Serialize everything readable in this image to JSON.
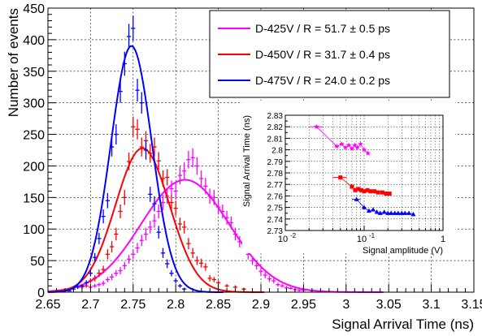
{
  "chart_data": [
    {
      "type": "scatter",
      "role": "main",
      "title": "",
      "xlabel": "Signal Arrival Time (ns)",
      "ylabel": "Number of events",
      "xlim": [
        2.65,
        3.15
      ],
      "ylim": [
        0,
        450
      ],
      "x_ticks": [
        "2.65",
        "2.7",
        "2.75",
        "2.8",
        "2.85",
        "2.9",
        "2.95",
        "3",
        "3.05",
        "3.1",
        "3.15"
      ],
      "y_ticks": [
        "0",
        "50",
        "100",
        "150",
        "200",
        "250",
        "300",
        "350",
        "400",
        "450"
      ],
      "grid": true,
      "legend_position": "top-right",
      "legend": [
        {
          "label": "D-425V / R = 51.7 ± 0.5 ps",
          "color": "#ff00ff"
        },
        {
          "label": "D-450V / R = 31.7 ± 0.4 ps",
          "color": "#ff0000"
        },
        {
          "label": "D-475V / R = 24.0 ± 0.2 ps",
          "color": "#0000ff"
        }
      ],
      "series": [
        {
          "name": "D-425V / R = 51.7 ± 0.5 ps",
          "color": "#ff00ff",
          "fit": {
            "mean": 2.811,
            "sigma": 0.0517,
            "amplitude": 178
          },
          "x": [
            2.7,
            2.705,
            2.71,
            2.715,
            2.72,
            2.725,
            2.73,
            2.735,
            2.74,
            2.745,
            2.75,
            2.755,
            2.76,
            2.765,
            2.77,
            2.775,
            2.78,
            2.785,
            2.79,
            2.795,
            2.8,
            2.805,
            2.81,
            2.815,
            2.82,
            2.825,
            2.83,
            2.835,
            2.84,
            2.845,
            2.85,
            2.855,
            2.86,
            2.865,
            2.87,
            2.875,
            2.88,
            2.885,
            2.89,
            2.895,
            2.9,
            2.905,
            2.91,
            2.915,
            2.92,
            2.925,
            2.93,
            2.935,
            2.94,
            2.945,
            2.95,
            2.96,
            2.97,
            2.98
          ],
          "y": [
            8,
            10,
            12,
            14,
            20,
            24,
            30,
            34,
            42,
            52,
            60,
            70,
            82,
            92,
            103,
            113,
            128,
            142,
            152,
            164,
            160,
            185,
            192,
            210,
            213,
            200,
            180,
            168,
            152,
            150,
            135,
            128,
            118,
            110,
            92,
            80,
            72,
            60,
            50,
            42,
            33,
            27,
            21,
            18,
            12,
            10,
            7,
            6,
            4,
            3,
            3,
            2,
            2,
            1
          ],
          "yerr": [
            3,
            3,
            3,
            4,
            4,
            5,
            5,
            6,
            6,
            7,
            8,
            8,
            9,
            10,
            10,
            11,
            11,
            12,
            12,
            13,
            13,
            14,
            14,
            14,
            15,
            14,
            13,
            13,
            12,
            12,
            12,
            11,
            11,
            10,
            10,
            9,
            8,
            8,
            7,
            6,
            6,
            5,
            5,
            4,
            3,
            3,
            3,
            2,
            2,
            2,
            2,
            1,
            1,
            1
          ]
        },
        {
          "name": "D-450V / R = 31.7 ± 0.4 ps",
          "color": "#ff0000",
          "fit": {
            "mean": 2.761,
            "sigma": 0.0317,
            "amplitude": 228
          },
          "x": [
            2.69,
            2.695,
            2.7,
            2.705,
            2.71,
            2.715,
            2.72,
            2.725,
            2.73,
            2.735,
            2.74,
            2.745,
            2.75,
            2.755,
            2.76,
            2.765,
            2.77,
            2.775,
            2.78,
            2.785,
            2.79,
            2.795,
            2.8,
            2.805,
            2.81,
            2.815,
            2.82,
            2.825,
            2.83,
            2.835,
            2.84,
            2.845,
            2.85,
            2.86,
            2.87,
            2.88
          ],
          "y": [
            8,
            10,
            18,
            22,
            30,
            36,
            60,
            72,
            92,
            128,
            150,
            207,
            262,
            258,
            230,
            240,
            220,
            230,
            208,
            180,
            182,
            142,
            133,
            108,
            103,
            77,
            62,
            50,
            46,
            40,
            22,
            20,
            15,
            10,
            8,
            5
          ],
          "yerr": [
            3,
            3,
            4,
            5,
            6,
            6,
            8,
            9,
            10,
            11,
            12,
            14,
            16,
            16,
            15,
            15,
            15,
            15,
            14,
            13,
            13,
            12,
            12,
            10,
            10,
            9,
            8,
            7,
            7,
            6,
            5,
            4,
            4,
            3,
            3,
            2
          ]
        },
        {
          "name": "D-475V / R = 24.0 ± 0.2 ps",
          "color": "#0000ff",
          "fit": {
            "mean": 2.748,
            "sigma": 0.024,
            "amplitude": 390
          },
          "x": [
            2.675,
            2.68,
            2.685,
            2.69,
            2.695,
            2.7,
            2.705,
            2.71,
            2.715,
            2.72,
            2.725,
            2.73,
            2.735,
            2.74,
            2.745,
            2.75,
            2.755,
            2.76,
            2.765,
            2.77,
            2.775,
            2.78,
            2.785,
            2.79,
            2.795,
            2.8,
            2.805,
            2.81
          ],
          "y": [
            2,
            5,
            8,
            10,
            15,
            30,
            55,
            85,
            120,
            145,
            230,
            250,
            318,
            362,
            405,
            418,
            320,
            300,
            225,
            155,
            140,
            95,
            62,
            45,
            30,
            18,
            10,
            5
          ],
          "yerr": [
            1,
            2,
            3,
            3,
            4,
            5,
            7,
            9,
            11,
            12,
            15,
            16,
            18,
            19,
            20,
            20,
            18,
            17,
            15,
            12,
            12,
            10,
            8,
            7,
            5,
            4,
            3,
            2
          ]
        }
      ]
    },
    {
      "type": "scatter",
      "role": "inset",
      "title": "",
      "xlabel": "Signal amplitude (V)",
      "ylabel": "Signal Arrival Time (ns)",
      "xscale": "log",
      "xlim": [
        0.01,
        1
      ],
      "ylim": [
        2.73,
        2.83
      ],
      "x_ticks": [
        "10",
        "10",
        "1"
      ],
      "x_tick_exponents": [
        "-2",
        "-1",
        ""
      ],
      "y_ticks": [
        "2.73",
        "2.74",
        "2.75",
        "2.76",
        "2.77",
        "2.78",
        "2.79",
        "2.8",
        "2.81",
        "2.82",
        "2.83"
      ],
      "grid": true,
      "series": [
        {
          "color": "#ff00ff",
          "marker": "star",
          "x": [
            0.025,
            0.045,
            0.052,
            0.058,
            0.064,
            0.07,
            0.076,
            0.082,
            0.09,
            0.1,
            0.112
          ],
          "y": [
            2.82,
            2.803,
            2.805,
            2.802,
            2.804,
            2.801,
            2.804,
            2.802,
            2.805,
            2.8,
            2.797
          ],
          "xerr": [
            0.005,
            0.003,
            0.003,
            0.003,
            0.003,
            0.003,
            0.003,
            0.003,
            0.004,
            0.004,
            0.004
          ]
        },
        {
          "color": "#ff0000",
          "marker": "square",
          "x": [
            0.05,
            0.07,
            0.077,
            0.084,
            0.092,
            0.1,
            0.11,
            0.12,
            0.135,
            0.15,
            0.17,
            0.19,
            0.21
          ],
          "y": [
            2.776,
            2.768,
            2.765,
            2.766,
            2.765,
            2.764,
            2.765,
            2.764,
            2.764,
            2.763,
            2.763,
            2.762,
            2.762
          ],
          "xerr": [
            0.01,
            0.004,
            0.004,
            0.004,
            0.004,
            0.004,
            0.005,
            0.005,
            0.005,
            0.006,
            0.006,
            0.007,
            0.007
          ]
        },
        {
          "color": "#0000ff",
          "marker": "triangle",
          "x": [
            0.08,
            0.1,
            0.115,
            0.13,
            0.145,
            0.16,
            0.18,
            0.2,
            0.22,
            0.245,
            0.27,
            0.3,
            0.33,
            0.37,
            0.42
          ],
          "y": [
            2.757,
            2.75,
            2.747,
            2.748,
            2.746,
            2.745,
            2.746,
            2.745,
            2.745,
            2.745,
            2.745,
            2.745,
            2.745,
            2.745,
            2.744
          ],
          "xerr": [
            0.01,
            0.006,
            0.006,
            0.006,
            0.006,
            0.007,
            0.007,
            0.008,
            0.008,
            0.009,
            0.01,
            0.01,
            0.011,
            0.012,
            0.014
          ]
        }
      ]
    }
  ]
}
